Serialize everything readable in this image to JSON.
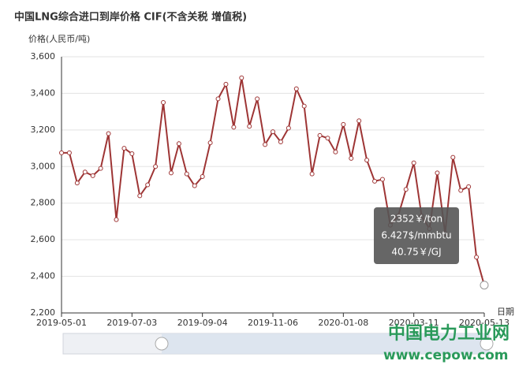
{
  "chart_data": {
    "type": "line",
    "title": "中国LNG综合进口到岸价格  CIF(不含关税  增值税)",
    "y_label": "价格(人民币/吨)",
    "x_label": "日期",
    "categories": [
      "2019-05-01",
      null,
      null,
      null,
      null,
      null,
      null,
      null,
      null,
      "2019-07-03",
      null,
      null,
      null,
      null,
      null,
      null,
      null,
      null,
      "2019-09-04",
      null,
      null,
      null,
      null,
      null,
      null,
      null,
      null,
      "2019-11-06",
      null,
      null,
      null,
      null,
      null,
      null,
      null,
      null,
      "2020-01-08",
      null,
      null,
      null,
      null,
      null,
      null,
      null,
      null,
      "2020-03-11",
      null,
      null,
      null,
      null,
      null,
      null,
      null,
      null,
      "2020-05-13"
    ],
    "series": [
      {
        "name": "价格",
        "color": "#9e3535",
        "values": [
          3075,
          3075,
          2910,
          2970,
          2950,
          2990,
          3180,
          2710,
          3100,
          3070,
          2840,
          2900,
          3000,
          3350,
          2965,
          3125,
          2960,
          2895,
          2945,
          3130,
          3370,
          3450,
          3215,
          3485,
          3220,
          3370,
          3120,
          3190,
          3135,
          3210,
          3425,
          3330,
          2960,
          3170,
          3155,
          3080,
          3230,
          3045,
          3250,
          3035,
          2920,
          2930,
          2680,
          2730,
          2875,
          3020,
          2730,
          2660,
          2965,
          2635,
          3050,
          2870,
          2890,
          2505,
          2352
        ]
      }
    ],
    "ylim": [
      2200,
      3600
    ],
    "yticks": [
      {
        "value": 2200,
        "label": "2,200"
      },
      {
        "value": 2400,
        "label": "2,400"
      },
      {
        "value": 2600,
        "label": "2,600"
      },
      {
        "value": 2800,
        "label": "2,800"
      },
      {
        "value": 3000,
        "label": "3,000"
      },
      {
        "value": 3200,
        "label": "3,200"
      },
      {
        "value": 3400,
        "label": "3,400"
      },
      {
        "value": 3600,
        "label": "3,600"
      }
    ],
    "grid": true,
    "tooltip": [
      "2352￥/ton",
      "6.427$/mmbtu",
      "40.75￥/GJ"
    ],
    "watermark": [
      "中国电力工业网",
      "www.cepow.com"
    ]
  }
}
